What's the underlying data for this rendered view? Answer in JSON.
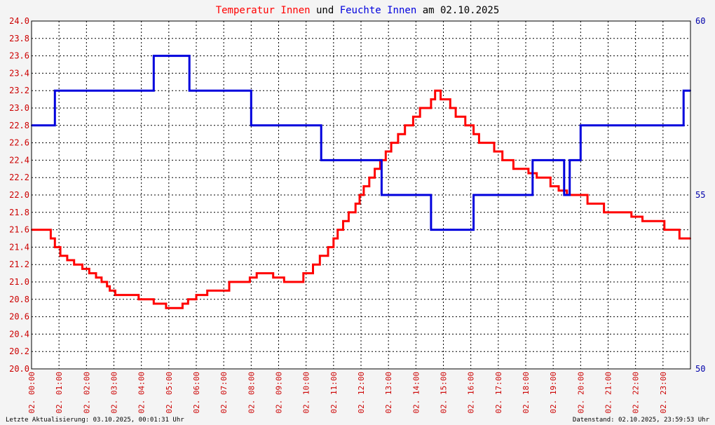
{
  "title": {
    "part1": "Temperatur Innen",
    "part2": " und ",
    "part3": "Feuchte Innen",
    "part4": " am 02.10.2025"
  },
  "colors": {
    "temperature": "#ff0000",
    "humidity": "#0000dd",
    "left_axis_text": "#cc0000",
    "right_axis_text": "#0000aa",
    "title_dark": "#000000",
    "background": "#f4f4f4",
    "plot_background": "#ffffff",
    "grid": "#000000"
  },
  "footer": {
    "left": "Letzte Aktualisierung: 03.10.2025, 00:01:31 Uhr",
    "right": "Datenstand: 02.10.2025, 23:59:53 Uhr"
  },
  "chart_data": {
    "type": "line",
    "grid": true,
    "x_range_hours": [
      0,
      24
    ],
    "x_ticks": [
      "02. 00:00",
      "02. 01:00",
      "02. 02:00",
      "02. 03:00",
      "02. 04:00",
      "02. 05:00",
      "02. 06:00",
      "02. 07:00",
      "02. 08:00",
      "02. 09:00",
      "02. 10:00",
      "02. 11:00",
      "02. 12:00",
      "02. 13:00",
      "02. 14:00",
      "02. 15:00",
      "02. 16:00",
      "02. 17:00",
      "02. 18:00",
      "02. 19:00",
      "02. 20:00",
      "02. 21:00",
      "02. 22:00",
      "02. 23:00"
    ],
    "y_left": {
      "range": [
        20.0,
        24.0
      ],
      "ticks": [
        "20.0",
        "20.2",
        "20.4",
        "20.6",
        "20.8",
        "21.0",
        "21.2",
        "21.4",
        "21.6",
        "21.8",
        "22.0",
        "22.2",
        "22.4",
        "22.6",
        "22.8",
        "23.0",
        "23.2",
        "23.4",
        "23.6",
        "23.8",
        "24.0"
      ]
    },
    "y_right": {
      "range": [
        50,
        60
      ],
      "ticks": [
        "50",
        "55",
        "60"
      ]
    },
    "series": [
      {
        "name": "Temperatur Innen",
        "axis": "left",
        "step": true,
        "x": [
          0.0,
          0.7,
          0.85,
          1.05,
          1.2,
          1.3,
          1.55,
          1.75,
          1.85,
          2.1,
          2.35,
          2.55,
          2.75,
          2.85,
          3.05,
          3.9,
          4.45,
          4.9,
          5.5,
          5.7,
          6.0,
          6.4,
          7.2,
          7.95,
          8.2,
          8.5,
          8.8,
          9.2,
          9.5,
          9.9,
          10.25,
          10.5,
          10.8,
          11.0,
          11.15,
          11.35,
          11.55,
          11.8,
          11.95,
          12.1,
          12.3,
          12.5,
          12.7,
          12.9,
          13.1,
          13.35,
          13.6,
          13.9,
          14.15,
          14.55,
          14.7,
          14.9,
          15.25,
          15.45,
          15.8,
          16.1,
          16.3,
          16.85,
          17.15,
          17.55,
          17.8,
          18.1,
          18.4,
          18.9,
          19.2,
          19.5,
          19.8,
          20.25,
          20.85,
          21.85,
          22.25,
          22.7,
          23.05,
          23.6,
          24.0
        ],
        "values": [
          21.6,
          21.5,
          21.4,
          21.3,
          21.3,
          21.25,
          21.2,
          21.2,
          21.15,
          21.1,
          21.05,
          21.0,
          20.95,
          20.9,
          20.85,
          20.8,
          20.75,
          20.7,
          20.75,
          20.8,
          20.85,
          20.9,
          21.0,
          21.05,
          21.1,
          21.1,
          21.05,
          21.0,
          21.0,
          21.1,
          21.2,
          21.3,
          21.4,
          21.5,
          21.6,
          21.7,
          21.8,
          21.9,
          22.0,
          22.1,
          22.2,
          22.3,
          22.4,
          22.5,
          22.6,
          22.7,
          22.8,
          22.9,
          23.0,
          23.1,
          23.2,
          23.1,
          23.0,
          22.9,
          22.8,
          22.7,
          22.6,
          22.5,
          22.4,
          22.3,
          22.3,
          22.25,
          22.2,
          22.1,
          22.05,
          22.0,
          22.0,
          21.9,
          21.8,
          21.75,
          21.7,
          21.7,
          21.6,
          21.5,
          21.5
        ]
      },
      {
        "name": "Feuchte Innen",
        "axis": "right",
        "step": true,
        "x": [
          0.0,
          0.85,
          4.45,
          4.8,
          5.4,
          5.75,
          8.0,
          10.55,
          12.75,
          14.55,
          15.95,
          16.1,
          18.25,
          19.4,
          19.6,
          20.0,
          23.75,
          24.0
        ],
        "values": [
          57.0,
          58.0,
          59.0,
          59.0,
          59.0,
          58.0,
          57.0,
          56.0,
          55.0,
          54.0,
          54.0,
          55.0,
          56.0,
          55.0,
          56.0,
          57.0,
          58.0,
          58.0
        ]
      }
    ]
  }
}
